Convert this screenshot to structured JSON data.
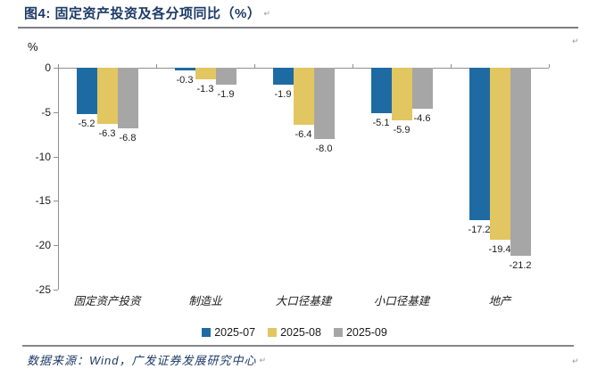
{
  "header": {
    "title": "图4: 固定资产投资及各分项同比（%）"
  },
  "marks": {
    "crlf": "↵"
  },
  "chart_data": {
    "type": "bar",
    "title": "固定资产投资及各分项同比（%）",
    "unit_label": "%",
    "categories": [
      "固定资产投资",
      "制造业",
      "大口径基建",
      "小口径基建",
      "地产"
    ],
    "series": [
      {
        "name": "2025-07",
        "color": "#1e6ba4",
        "values": [
          -5.2,
          -0.3,
          -1.9,
          -5.1,
          -17.2
        ]
      },
      {
        "name": "2025-08",
        "color": "#e2c661",
        "values": [
          -6.3,
          -1.3,
          -6.4,
          -5.9,
          -19.4
        ]
      },
      {
        "name": "2025-09",
        "color": "#a6a6a6",
        "values": [
          -6.8,
          -1.9,
          -8.0,
          -4.6,
          -21.2
        ]
      }
    ],
    "ylim": [
      0,
      -25
    ],
    "yticks": [
      0,
      -5,
      -10,
      -15,
      -20,
      -25
    ],
    "grid": false,
    "legend_position": "bottom",
    "value_labels_format": "one-decimal"
  },
  "colors": {
    "accent_navy": "#1b3a66",
    "axis": "#8f8f8f"
  },
  "footer": {
    "source": "数据来源：Wind，广发证券发展研究中心"
  }
}
